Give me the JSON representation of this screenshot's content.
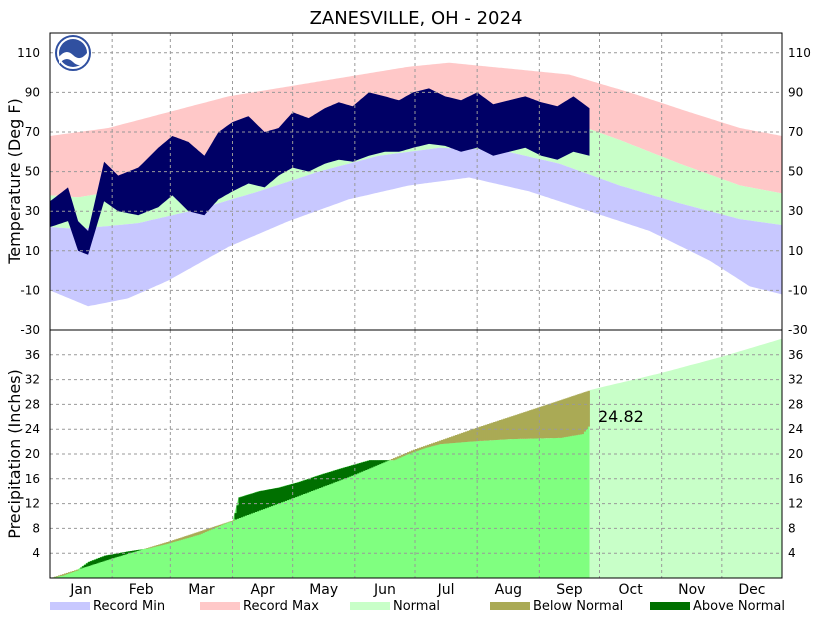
{
  "chart_data": [
    {
      "type": "area",
      "title": "ZANESVILLE, OH - 2024",
      "ylabel": "Temperature (Deg F)",
      "ylim": [
        -30,
        120
      ],
      "yticks": [
        110,
        90,
        70,
        50,
        30,
        10,
        -10,
        -30
      ],
      "months": [
        "Jan",
        "Feb",
        "Mar",
        "Apr",
        "May",
        "Jun",
        "Jul",
        "Aug",
        "Sep",
        "Oct",
        "Nov",
        "Dec"
      ],
      "grid": true,
      "observed_through_day": 270,
      "normal_high": [
        {
          "day": 1,
          "value": 38
        },
        {
          "day": 15,
          "value": 37
        },
        {
          "day": 45,
          "value": 42
        },
        {
          "day": 75,
          "value": 52
        },
        {
          "day": 105,
          "value": 64
        },
        {
          "day": 135,
          "value": 74
        },
        {
          "day": 165,
          "value": 81
        },
        {
          "day": 195,
          "value": 84
        },
        {
          "day": 225,
          "value": 83
        },
        {
          "day": 255,
          "value": 77
        },
        {
          "day": 285,
          "value": 66
        },
        {
          "day": 315,
          "value": 54
        },
        {
          "day": 345,
          "value": 43
        },
        {
          "day": 366,
          "value": 39
        }
      ],
      "normal_low": [
        {
          "day": 1,
          "value": 22
        },
        {
          "day": 15,
          "value": 21
        },
        {
          "day": 45,
          "value": 24
        },
        {
          "day": 75,
          "value": 31
        },
        {
          "day": 105,
          "value": 40
        },
        {
          "day": 135,
          "value": 50
        },
        {
          "day": 165,
          "value": 58
        },
        {
          "day": 195,
          "value": 62
        },
        {
          "day": 225,
          "value": 61
        },
        {
          "day": 255,
          "value": 54
        },
        {
          "day": 285,
          "value": 43
        },
        {
          "day": 315,
          "value": 34
        },
        {
          "day": 345,
          "value": 26
        },
        {
          "day": 366,
          "value": 23
        }
      ],
      "record_high": [
        {
          "day": 1,
          "value": 68
        },
        {
          "day": 30,
          "value": 72
        },
        {
          "day": 60,
          "value": 80
        },
        {
          "day": 90,
          "value": 88
        },
        {
          "day": 120,
          "value": 93
        },
        {
          "day": 150,
          "value": 98
        },
        {
          "day": 180,
          "value": 103
        },
        {
          "day": 200,
          "value": 105
        },
        {
          "day": 230,
          "value": 102
        },
        {
          "day": 260,
          "value": 99
        },
        {
          "day": 290,
          "value": 90
        },
        {
          "day": 320,
          "value": 80
        },
        {
          "day": 345,
          "value": 72
        },
        {
          "day": 366,
          "value": 68
        }
      ],
      "record_low": [
        {
          "day": 1,
          "value": -10
        },
        {
          "day": 20,
          "value": -18
        },
        {
          "day": 40,
          "value": -14
        },
        {
          "day": 60,
          "value": -5
        },
        {
          "day": 90,
          "value": 12
        },
        {
          "day": 120,
          "value": 25
        },
        {
          "day": 150,
          "value": 36
        },
        {
          "day": 180,
          "value": 43
        },
        {
          "day": 210,
          "value": 47
        },
        {
          "day": 240,
          "value": 40
        },
        {
          "day": 270,
          "value": 30
        },
        {
          "day": 300,
          "value": 20
        },
        {
          "day": 330,
          "value": 5
        },
        {
          "day": 350,
          "value": -8
        },
        {
          "day": 366,
          "value": -12
        }
      ],
      "observed_high": [
        {
          "day": 1,
          "value": 35
        },
        {
          "day": 10,
          "value": 42
        },
        {
          "day": 15,
          "value": 25
        },
        {
          "day": 20,
          "value": 20
        },
        {
          "day": 28,
          "value": 55
        },
        {
          "day": 35,
          "value": 48
        },
        {
          "day": 45,
          "value": 52
        },
        {
          "day": 55,
          "value": 62
        },
        {
          "day": 62,
          "value": 68
        },
        {
          "day": 70,
          "value": 65
        },
        {
          "day": 78,
          "value": 58
        },
        {
          "day": 85,
          "value": 70
        },
        {
          "day": 92,
          "value": 75
        },
        {
          "day": 100,
          "value": 78
        },
        {
          "day": 108,
          "value": 70
        },
        {
          "day": 115,
          "value": 72
        },
        {
          "day": 122,
          "value": 80
        },
        {
          "day": 130,
          "value": 77
        },
        {
          "day": 138,
          "value": 82
        },
        {
          "day": 145,
          "value": 85
        },
        {
          "day": 152,
          "value": 83
        },
        {
          "day": 160,
          "value": 90
        },
        {
          "day": 168,
          "value": 88
        },
        {
          "day": 175,
          "value": 86
        },
        {
          "day": 182,
          "value": 90
        },
        {
          "day": 190,
          "value": 92
        },
        {
          "day": 198,
          "value": 88
        },
        {
          "day": 206,
          "value": 86
        },
        {
          "day": 214,
          "value": 90
        },
        {
          "day": 222,
          "value": 84
        },
        {
          "day": 230,
          "value": 86
        },
        {
          "day": 238,
          "value": 88
        },
        {
          "day": 246,
          "value": 85
        },
        {
          "day": 254,
          "value": 83
        },
        {
          "day": 262,
          "value": 88
        },
        {
          "day": 270,
          "value": 82
        }
      ],
      "observed_low": [
        {
          "day": 1,
          "value": 22
        },
        {
          "day": 10,
          "value": 25
        },
        {
          "day": 15,
          "value": 10
        },
        {
          "day": 20,
          "value": 8
        },
        {
          "day": 28,
          "value": 35
        },
        {
          "day": 35,
          "value": 30
        },
        {
          "day": 45,
          "value": 28
        },
        {
          "day": 55,
          "value": 32
        },
        {
          "day": 62,
          "value": 38
        },
        {
          "day": 70,
          "value": 30
        },
        {
          "day": 78,
          "value": 28
        },
        {
          "day": 85,
          "value": 36
        },
        {
          "day": 92,
          "value": 40
        },
        {
          "day": 100,
          "value": 44
        },
        {
          "day": 108,
          "value": 42
        },
        {
          "day": 115,
          "value": 48
        },
        {
          "day": 122,
          "value": 52
        },
        {
          "day": 130,
          "value": 50
        },
        {
          "day": 138,
          "value": 54
        },
        {
          "day": 145,
          "value": 56
        },
        {
          "day": 152,
          "value": 55
        },
        {
          "day": 160,
          "value": 58
        },
        {
          "day": 168,
          "value": 60
        },
        {
          "day": 175,
          "value": 60
        },
        {
          "day": 182,
          "value": 62
        },
        {
          "day": 190,
          "value": 64
        },
        {
          "day": 198,
          "value": 63
        },
        {
          "day": 206,
          "value": 60
        },
        {
          "day": 214,
          "value": 62
        },
        {
          "day": 222,
          "value": 58
        },
        {
          "day": 230,
          "value": 60
        },
        {
          "day": 238,
          "value": 62
        },
        {
          "day": 246,
          "value": 58
        },
        {
          "day": 254,
          "value": 56
        },
        {
          "day": 262,
          "value": 60
        },
        {
          "day": 270,
          "value": 58
        }
      ]
    },
    {
      "type": "area",
      "ylabel": "Precipitation (Inches)",
      "ylim": [
        0,
        40
      ],
      "yticks": [
        36,
        32,
        28,
        24,
        20,
        16,
        12,
        8,
        4
      ],
      "grid": true,
      "annotation": "24.82",
      "observed_through_day": 270,
      "normal_cumulative": [
        {
          "day": 1,
          "value": 0
        },
        {
          "day": 32,
          "value": 3.2
        },
        {
          "day": 60,
          "value": 5.9
        },
        {
          "day": 91,
          "value": 9.2
        },
        {
          "day": 121,
          "value": 12.8
        },
        {
          "day": 152,
          "value": 16.6
        },
        {
          "day": 182,
          "value": 20.7
        },
        {
          "day": 213,
          "value": 24.2
        },
        {
          "day": 244,
          "value": 27.5
        },
        {
          "day": 270,
          "value": 30.3
        },
        {
          "day": 305,
          "value": 33.0
        },
        {
          "day": 335,
          "value": 35.6
        },
        {
          "day": 366,
          "value": 38.6
        }
      ],
      "observed_cumulative": [
        {
          "day": 1,
          "value": 0
        },
        {
          "day": 7,
          "value": 0.4
        },
        {
          "day": 14,
          "value": 1.2
        },
        {
          "day": 20,
          "value": 2.6
        },
        {
          "day": 28,
          "value": 3.6
        },
        {
          "day": 38,
          "value": 4.2
        },
        {
          "day": 50,
          "value": 4.8
        },
        {
          "day": 60,
          "value": 5.6
        },
        {
          "day": 75,
          "value": 7.0
        },
        {
          "day": 88,
          "value": 8.8
        },
        {
          "day": 92,
          "value": 9.2
        },
        {
          "day": 95,
          "value": 13.0
        },
        {
          "day": 105,
          "value": 14.0
        },
        {
          "day": 115,
          "value": 14.6
        },
        {
          "day": 125,
          "value": 15.5
        },
        {
          "day": 135,
          "value": 16.6
        },
        {
          "day": 145,
          "value": 17.6
        },
        {
          "day": 160,
          "value": 19.0
        },
        {
          "day": 172,
          "value": 19.0
        },
        {
          "day": 180,
          "value": 20.1
        },
        {
          "day": 188,
          "value": 21.0
        },
        {
          "day": 195,
          "value": 21.6
        },
        {
          "day": 210,
          "value": 22.0
        },
        {
          "day": 230,
          "value": 22.4
        },
        {
          "day": 255,
          "value": 22.6
        },
        {
          "day": 266,
          "value": 23.2
        },
        {
          "day": 270,
          "value": 24.82
        }
      ]
    }
  ],
  "legend": [
    {
      "label": "Record Min",
      "color": "#c8c8ff"
    },
    {
      "label": "Record Max",
      "color": "#ffc8c8"
    },
    {
      "label": "Normal",
      "color": "#c8ffc8"
    },
    {
      "label": "Below Normal",
      "color": "#aaaa55"
    },
    {
      "label": "Above Normal",
      "color": "#007000"
    }
  ],
  "colors": {
    "record_min": "#c8c8ff",
    "record_max": "#ffc8c8",
    "normal": "#c8ffc8",
    "observed_temp": "#000066",
    "observed_precip": "#80ff80",
    "future_precip": "#c8ffc8",
    "below_normal": "#aaaa55",
    "above_normal": "#007000",
    "logo": "#3050a0"
  }
}
